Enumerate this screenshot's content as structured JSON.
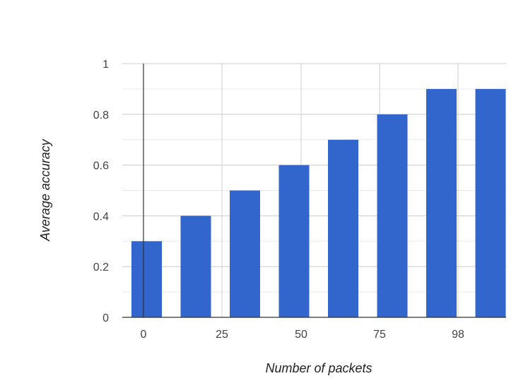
{
  "chart_data": {
    "type": "bar",
    "title": "",
    "xlabel": "Number of packets",
    "ylabel": "Average accuracy",
    "values": [
      0.3,
      0.4,
      0.5,
      0.6,
      0.7,
      0.8,
      0.9,
      0.9
    ],
    "ylim": [
      0,
      1
    ],
    "y_ticks": [
      "0",
      "0.2",
      "0.4",
      "0.6",
      "0.8",
      "1"
    ],
    "x_tick_labels": [
      "0",
      "25",
      "50",
      "75",
      "98"
    ],
    "grid": true,
    "legend": "none",
    "bar_color": "#3366cc"
  }
}
